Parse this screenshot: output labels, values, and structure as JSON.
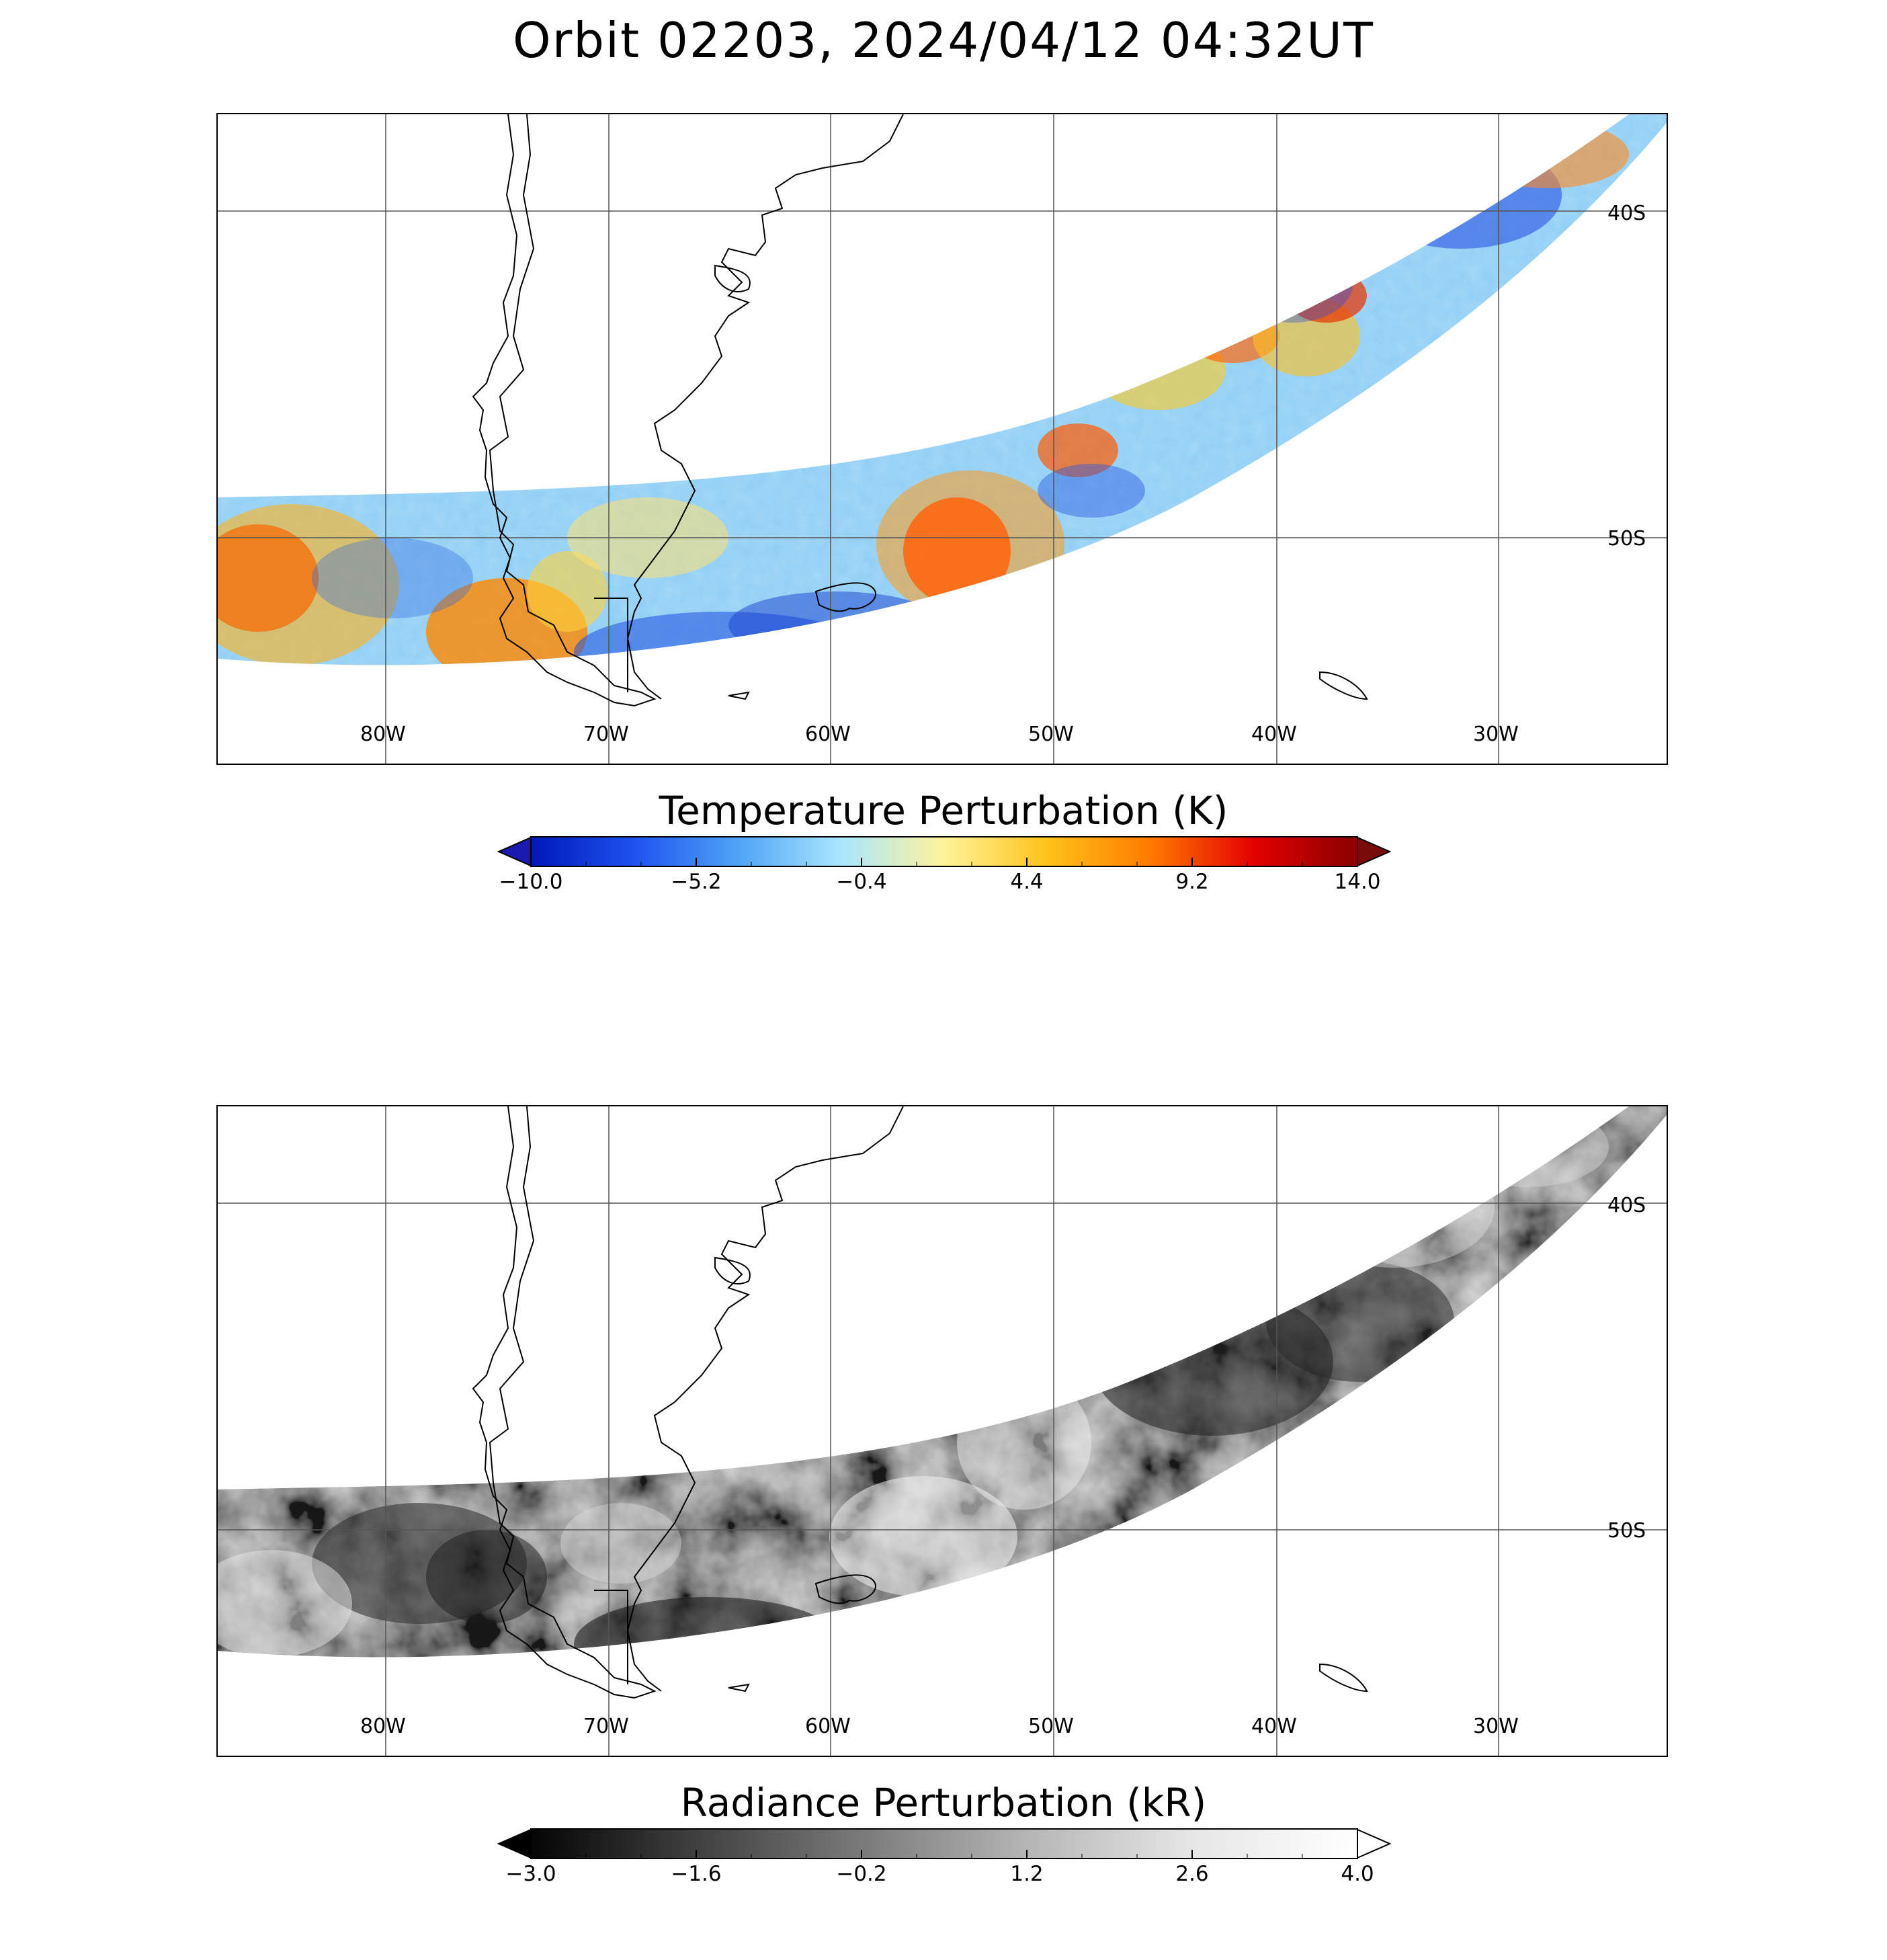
{
  "title": "Orbit 02203, 2024/04/12 04:32UT",
  "map": {
    "lon_range": [
      -87.5,
      -22.5
    ],
    "lat_range": [
      -58.5,
      -35.5
    ],
    "lon_ticks": [
      "80W",
      "70W",
      "60W",
      "50W",
      "40W",
      "30W"
    ],
    "lat_ticks": [
      "40S",
      "50S"
    ]
  },
  "panels": [
    {
      "name": "temperature",
      "colorbar": {
        "title": "Temperature Perturbation (K)",
        "ticks": [
          "−10.0",
          "−5.2",
          "−0.4",
          "4.4",
          "9.2",
          "14.0"
        ],
        "min": -10.0,
        "max": 14.0,
        "colors": [
          "#0018b8",
          "#1f52f0",
          "#4fa3f5",
          "#a9e6ff",
          "#fff39a",
          "#ffc21a",
          "#ff7a00",
          "#e30000",
          "#8a0000"
        ],
        "under_color": "#1a1ab0",
        "over_color": "#7a0b0b"
      }
    },
    {
      "name": "radiance",
      "colorbar": {
        "title": "Radiance Perturbation (kR)",
        "ticks": [
          "−3.0",
          "−1.6",
          "−0.2",
          "1.2",
          "2.6",
          "4.0"
        ],
        "min": -3.0,
        "max": 4.0,
        "colors": [
          "#050505",
          "#404040",
          "#7a7a7a",
          "#b5b5b5",
          "#e6e6e6",
          "#ffffff"
        ],
        "under_color": "#000000",
        "over_color": "#ffffff"
      }
    }
  ]
}
